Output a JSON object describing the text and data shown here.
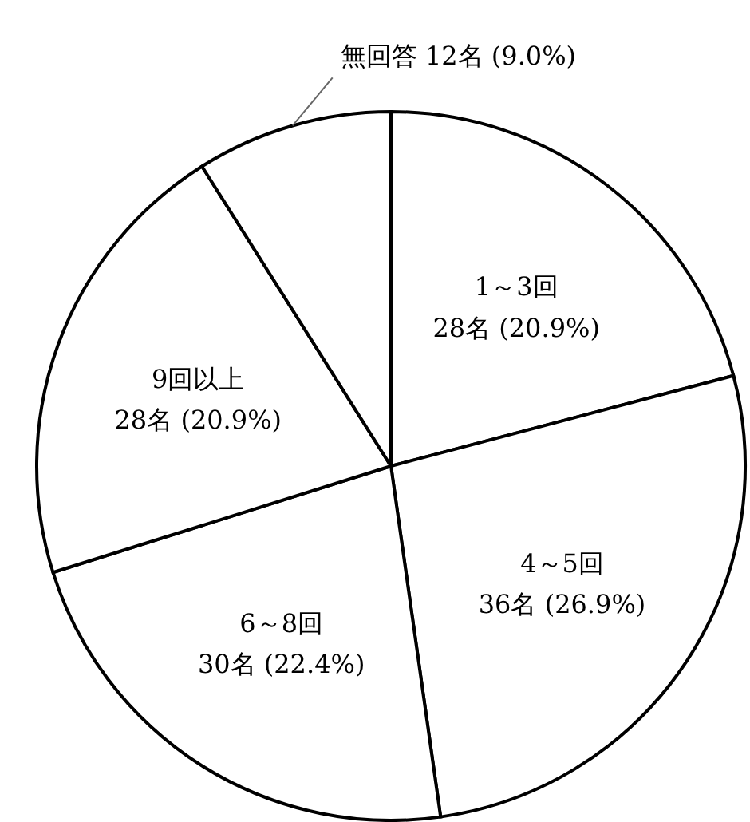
{
  "chart_data": {
    "type": "pie",
    "categories": [
      "1～3回",
      "4～5回",
      "6～8回",
      "9回以上",
      "無回答"
    ],
    "values": [
      28,
      36,
      30,
      28,
      12
    ],
    "value_labels": [
      "28名 (20.9%)",
      "36名 (26.9%)",
      "30名 (22.4%)",
      "28名 (20.9%)",
      "12名 (9.0%)"
    ],
    "colors": [
      "#ffffff",
      "#ffffff",
      "#ffffff",
      "#ffffff",
      "#ffffff"
    ]
  }
}
